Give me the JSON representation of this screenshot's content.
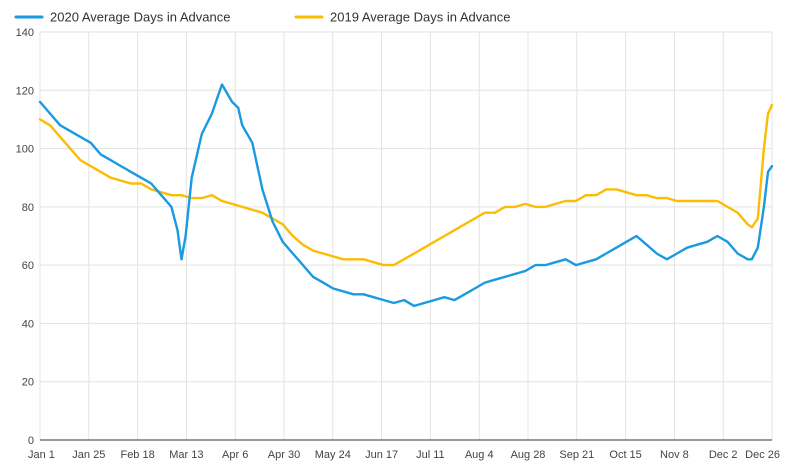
{
  "chart_data": {
    "type": "line",
    "title": "",
    "xlabel": "",
    "ylabel": "",
    "ylim": [
      0,
      140
    ],
    "yticks": [
      0,
      20,
      40,
      60,
      80,
      100,
      120,
      140
    ],
    "x_tick_labels": [
      "Jan 1",
      "Jan 25",
      "Feb 18",
      "Mar 13",
      "Apr 6",
      "Apr 30",
      "May 24",
      "Jun 17",
      "Jul 11",
      "Aug 4",
      "Aug 28",
      "Sep 21",
      "Oct 15",
      "Nov 8",
      "Dec 2",
      "Dec 26"
    ],
    "grid": true,
    "legend_position": "top-left",
    "series": [
      {
        "name": "2020 Average Days in Advance",
        "color": "#1a9ae0",
        "x": [
          0,
          5,
          10,
          15,
          20,
          25,
          30,
          35,
          40,
          45,
          50,
          55,
          60,
          65,
          68,
          70,
          72,
          75,
          80,
          85,
          88,
          90,
          95,
          98,
          100,
          105,
          110,
          115,
          120,
          125,
          130,
          135,
          140,
          145,
          150,
          155,
          160,
          165,
          170,
          175,
          180,
          185,
          190,
          195,
          200,
          205,
          210,
          215,
          220,
          225,
          230,
          235,
          240,
          245,
          250,
          255,
          260,
          265,
          270,
          275,
          280,
          285,
          290,
          295,
          300,
          305,
          310,
          315,
          320,
          325,
          330,
          335,
          340,
          345,
          350,
          352,
          355,
          358,
          360,
          362
        ],
        "values": [
          116,
          112,
          108,
          106,
          104,
          102,
          98,
          96,
          94,
          92,
          90,
          88,
          84,
          80,
          72,
          62,
          70,
          90,
          105,
          112,
          118,
          122,
          116,
          114,
          108,
          102,
          86,
          75,
          68,
          64,
          60,
          56,
          54,
          52,
          51,
          50,
          50,
          49,
          48,
          47,
          48,
          46,
          47,
          48,
          49,
          48,
          50,
          52,
          54,
          55,
          56,
          57,
          58,
          60,
          60,
          61,
          62,
          60,
          61,
          62,
          64,
          66,
          68,
          70,
          67,
          64,
          62,
          64,
          66,
          67,
          68,
          70,
          68,
          64,
          62,
          62,
          66,
          80,
          92,
          94
        ]
      },
      {
        "name": "2019 Average Days in Advance",
        "color": "#fbbc04",
        "x": [
          0,
          5,
          10,
          15,
          20,
          25,
          30,
          35,
          40,
          45,
          50,
          55,
          60,
          65,
          70,
          75,
          80,
          85,
          90,
          95,
          100,
          105,
          110,
          115,
          120,
          125,
          130,
          135,
          140,
          145,
          150,
          155,
          160,
          165,
          170,
          175,
          180,
          185,
          190,
          195,
          200,
          205,
          210,
          215,
          220,
          225,
          230,
          235,
          240,
          245,
          250,
          255,
          260,
          265,
          270,
          275,
          280,
          285,
          290,
          295,
          300,
          305,
          310,
          315,
          320,
          325,
          330,
          335,
          340,
          345,
          350,
          352,
          355,
          358,
          360,
          362
        ],
        "values": [
          110,
          108,
          104,
          100,
          96,
          94,
          92,
          90,
          89,
          88,
          88,
          86,
          85,
          84,
          84,
          83,
          83,
          84,
          82,
          81,
          80,
          79,
          78,
          76,
          74,
          70,
          67,
          65,
          64,
          63,
          62,
          62,
          62,
          61,
          60,
          60,
          62,
          64,
          66,
          68,
          70,
          72,
          74,
          76,
          78,
          78,
          80,
          80,
          81,
          80,
          80,
          81,
          82,
          82,
          84,
          84,
          86,
          86,
          85,
          84,
          84,
          83,
          83,
          82,
          82,
          82,
          82,
          82,
          80,
          78,
          74,
          73,
          76,
          100,
          112,
          115
        ]
      }
    ]
  }
}
